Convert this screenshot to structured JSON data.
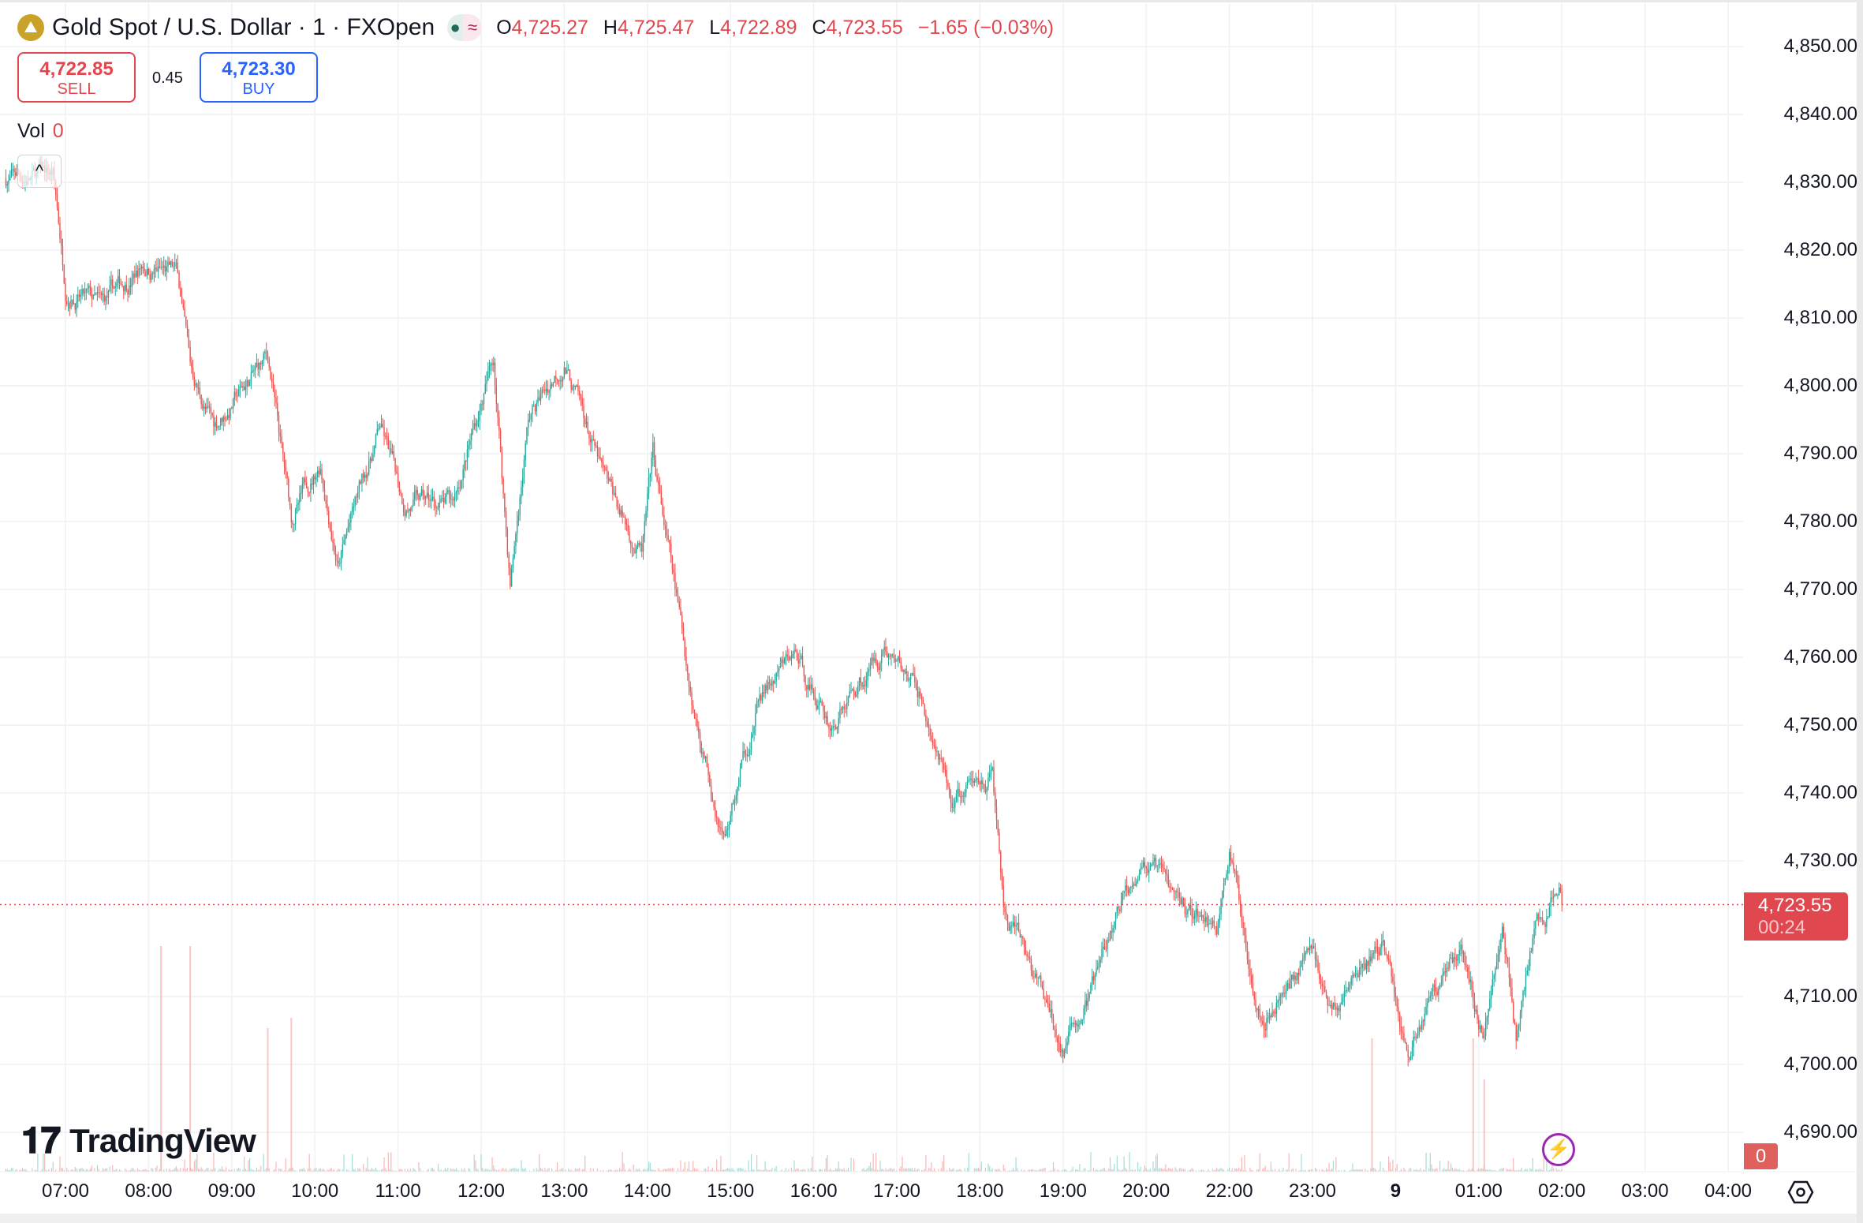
{
  "header": {
    "symbol_title": "Gold Spot / U.S. Dollar · 1 · FXOpen",
    "logo_icon": "gold-bars-icon",
    "status_icons": [
      "market-open-dot-icon",
      "delayed-data-icon"
    ],
    "ohlc": {
      "o_label": "O",
      "o": "4,725.27",
      "h_label": "H",
      "h": "4,725.47",
      "l_label": "L",
      "l": "4,722.89",
      "c_label": "C",
      "c": "4,723.55",
      "change": "−1.65 (−0.03%)"
    }
  },
  "trade": {
    "sell_price": "4,722.85",
    "sell_label": "SELL",
    "spread": "0.45",
    "buy_price": "4,723.30",
    "buy_label": "BUY"
  },
  "volume_legend": {
    "label": "Vol",
    "value": "0"
  },
  "branding": {
    "name": "TradingView"
  },
  "price_axis": {
    "ticks": [
      "4,850.00",
      "4,840.00",
      "4,830.00",
      "4,820.00",
      "4,810.00",
      "4,800.00",
      "4,790.00",
      "4,780.00",
      "4,770.00",
      "4,760.00",
      "4,750.00",
      "4,740.00",
      "4,730.00",
      "4,710.00",
      "4,700.00",
      "4,690.00"
    ],
    "last_price": "4,723.55",
    "countdown": "00:24",
    "volume_value": "0"
  },
  "time_axis": {
    "ticks": [
      "07:00",
      "08:00",
      "09:00",
      "10:00",
      "11:00",
      "12:00",
      "13:00",
      "14:00",
      "15:00",
      "16:00",
      "17:00",
      "18:00",
      "19:00",
      "20:00",
      "22:00",
      "23:00",
      "9",
      "01:00",
      "02:00",
      "03:00",
      "04:00"
    ]
  },
  "colors": {
    "up": "#26a69a",
    "down": "#ef5350",
    "last_price": "#e0474f",
    "sell": "#e0474f",
    "buy": "#2962ff"
  },
  "chart_data": {
    "type": "candlestick",
    "interval": "1 minute",
    "ylim": [
      4685,
      4852
    ],
    "grid": true,
    "session_break": [
      "21:00",
      "22:00"
    ],
    "close_path": [
      [
        "06:17",
        4830.6
      ],
      [
        "06:51",
        4831
      ],
      [
        "07:00",
        4815
      ],
      [
        "07:26",
        4811
      ],
      [
        "07:56",
        4818
      ],
      [
        "08:21",
        4816
      ],
      [
        "08:30",
        4802
      ],
      [
        "08:47",
        4794
      ],
      [
        "09:26",
        4804
      ],
      [
        "09:43",
        4780
      ],
      [
        "10:04",
        4789
      ],
      [
        "10:17",
        4774
      ],
      [
        "10:47",
        4794
      ],
      [
        "11:04",
        4783
      ],
      [
        "11:39",
        4782
      ],
      [
        "12:09",
        4804
      ],
      [
        "12:21",
        4771
      ],
      [
        "12:34",
        4795
      ],
      [
        "13:00",
        4804
      ],
      [
        "13:30",
        4785
      ],
      [
        "13:56",
        4775
      ],
      [
        "14:04",
        4789
      ],
      [
        "14:34",
        4752
      ],
      [
        "14:56",
        4734
      ],
      [
        "15:21",
        4754
      ],
      [
        "15:47",
        4760
      ],
      [
        "16:13",
        4750
      ],
      [
        "16:51",
        4762
      ],
      [
        "17:17",
        4754
      ],
      [
        "17:39",
        4738
      ],
      [
        "18:09",
        4743
      ],
      [
        "18:17",
        4722
      ],
      [
        "18:39",
        4713
      ],
      [
        "19:00",
        4702
      ],
      [
        "19:21",
        4711
      ],
      [
        "19:56",
        4731
      ],
      [
        "20:21",
        4724
      ],
      [
        "20:51",
        4720
      ],
      [
        "22:00",
        4732
      ],
      [
        "22:12",
        4717
      ],
      [
        "22:25",
        4708
      ],
      [
        "23:00",
        4717
      ],
      [
        "23:13",
        4708
      ],
      [
        "23:51",
        4718
      ],
      [
        "00:09",
        4701
      ],
      [
        "00:26",
        4711
      ],
      [
        "00:47",
        4718
      ],
      [
        "01:04",
        4704
      ],
      [
        "01:17",
        4722
      ],
      [
        "01:27",
        4704
      ],
      [
        "01:39",
        4718
      ],
      [
        "01:59",
        4726
      ],
      [
        "02:00",
        4723.55
      ]
    ],
    "volume_spikes": [
      [
        "08:09",
        220
      ],
      [
        "08:30",
        220
      ],
      [
        "09:26",
        140
      ],
      [
        "09:43",
        150
      ],
      [
        "23:43",
        130
      ],
      [
        "00:56",
        130
      ],
      [
        "01:04",
        90
      ]
    ]
  }
}
